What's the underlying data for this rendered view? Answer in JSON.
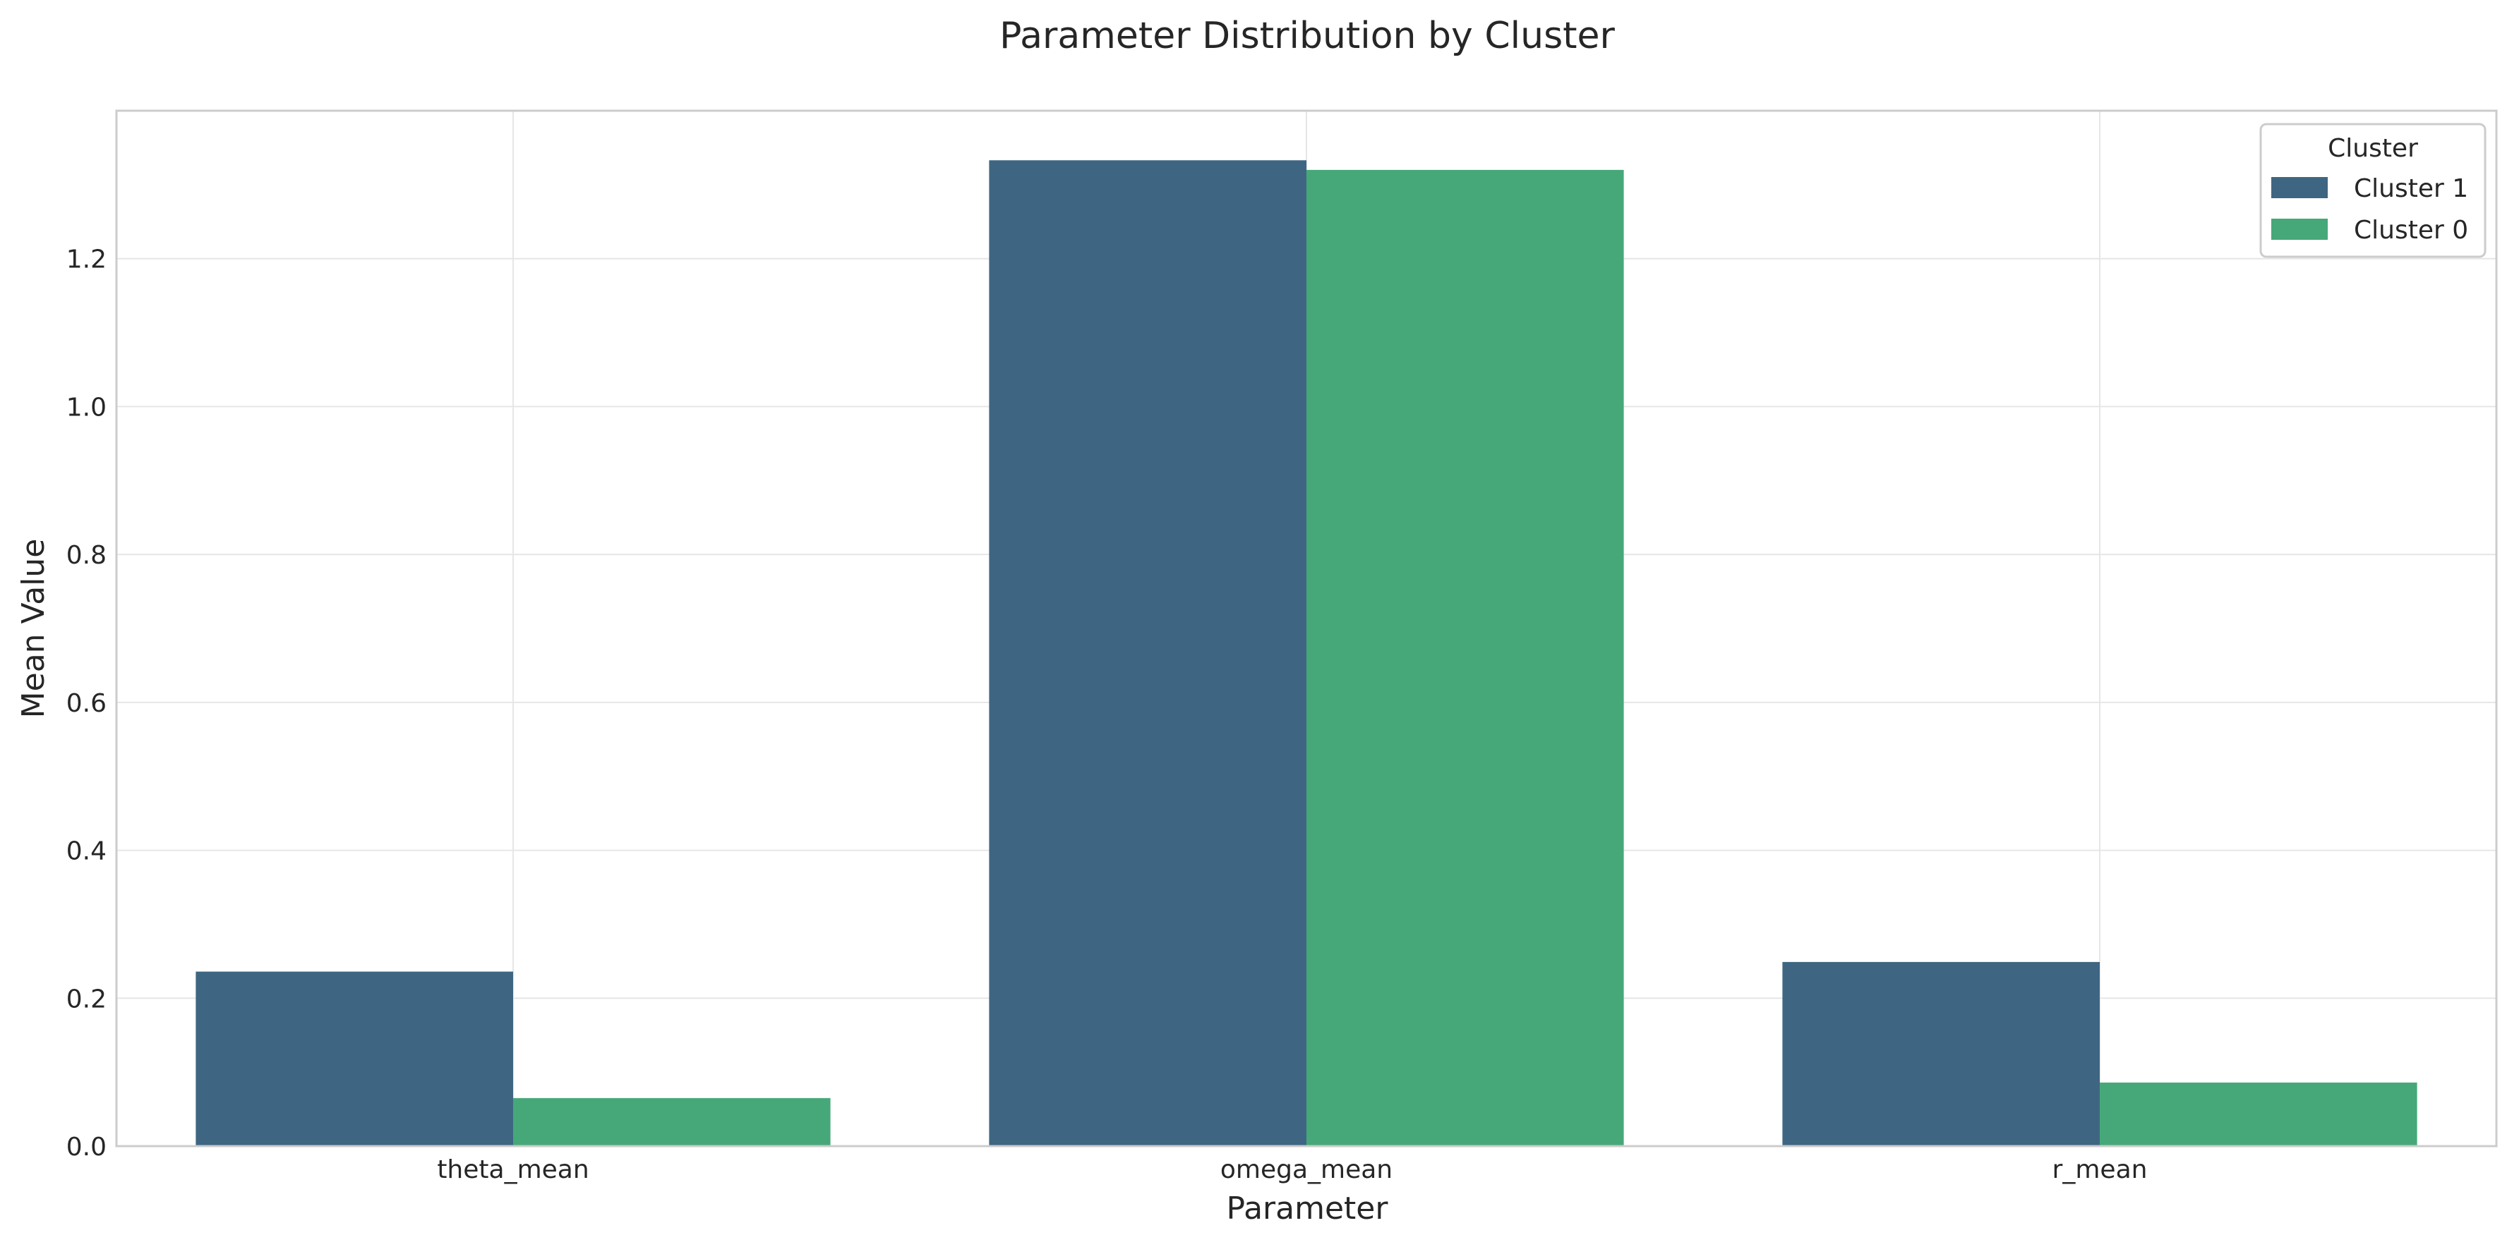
{
  "chart_data": {
    "type": "bar",
    "title": "Parameter Distribution by Cluster",
    "xlabel": "Parameter",
    "ylabel": "Mean Value",
    "categories": [
      "theta_mean",
      "omega_mean",
      "r_mean"
    ],
    "series": [
      {
        "name": "Cluster 1",
        "color": "#3e6682",
        "values": [
          0.236,
          1.333,
          0.249
        ]
      },
      {
        "name": "Cluster 0",
        "color": "#46a878",
        "values": [
          0.065,
          1.32,
          0.086
        ]
      }
    ],
    "ylim": [
      0,
      1.4
    ],
    "yticks": [
      "0.0",
      "0.2",
      "0.4",
      "0.6",
      "0.8",
      "1.0",
      "1.2"
    ],
    "grid": true,
    "legend": {
      "title": "Cluster",
      "placement": "top-right"
    }
  }
}
